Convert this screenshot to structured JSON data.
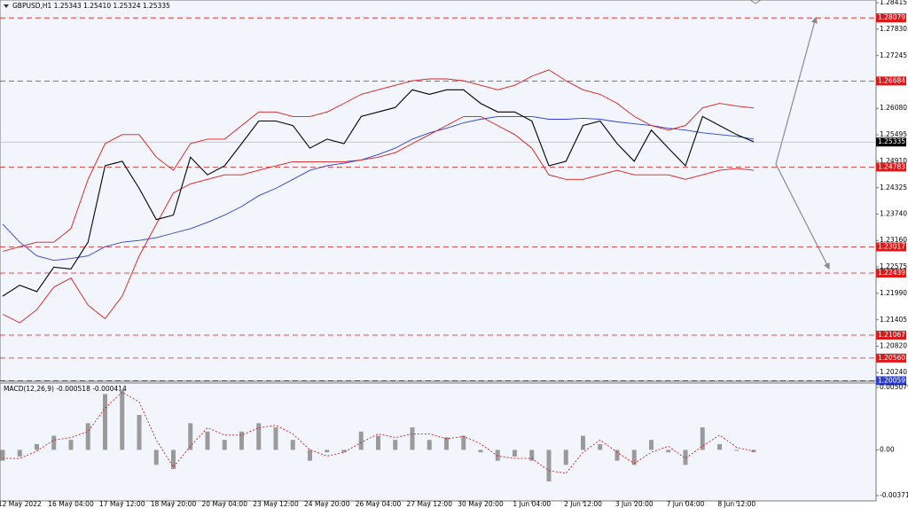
{
  "chart_data": [
    {
      "type": "line",
      "title": "GBPUSD,H1  1.25343 1.25410 1.25324 1.25335",
      "x": [
        0,
        1,
        2,
        3,
        4,
        5,
        6,
        7,
        8,
        9,
        10,
        11,
        12,
        13,
        14,
        15,
        16,
        17,
        18,
        19,
        20,
        21,
        22,
        23,
        24,
        25,
        26,
        27,
        28,
        29,
        30,
        31,
        32,
        33,
        34,
        35,
        36,
        37,
        38,
        39,
        40,
        41,
        42,
        43,
        44
      ],
      "xlim": [
        0,
        44
      ],
      "xticks": [
        {
          "value": 1,
          "label": "12 May 2022"
        },
        {
          "value": 4,
          "label": "16 May 04:00"
        },
        {
          "value": 7,
          "label": "17 May 12:00"
        },
        {
          "value": 10,
          "label": "18 May 20:00"
        },
        {
          "value": 13,
          "label": "20 May 04:00"
        },
        {
          "value": 16,
          "label": "23 May 12:00"
        },
        {
          "value": 19,
          "label": "24 May 20:00"
        },
        {
          "value": 22,
          "label": "26 May 04:00"
        },
        {
          "value": 25,
          "label": "27 May 12:00"
        },
        {
          "value": 28,
          "label": "30 May 20:00"
        },
        {
          "value": 31,
          "label": "1 Jun 04:00"
        },
        {
          "value": 34,
          "label": "2 Jun 12:00"
        },
        {
          "value": 37,
          "label": "3 Jun 20:00"
        },
        {
          "value": 40,
          "label": "7 Jun 04:00"
        },
        {
          "value": 43,
          "label": "8 Jun 12:00"
        }
      ],
      "ylim": [
        1.20048,
        1.28475
      ],
      "yticks": [
        1.28415,
        {
          "value": 1.2783,
          "label": "1.27830"
        },
        1.27245,
        {
          "value": 1.2608,
          "label": "1.26080"
        },
        1.25495,
        {
          "value": 1.2491,
          "label": "1.24910"
        },
        1.24325,
        {
          "value": 1.2374,
          "label": "1.23740"
        },
        {
          "value": 1.2316,
          "label": "1.23160"
        },
        1.22575,
        {
          "value": 1.2199,
          "label": "1.21990"
        },
        1.21405,
        {
          "value": 1.2082,
          "label": "1.20820"
        },
        {
          "value": 1.2024,
          "label": "1.20240"
        }
      ],
      "series": [
        {
          "color": "#2c3fd0",
          "values": [
            1.2352,
            1.2312,
            1.2282,
            1.2272,
            1.2276,
            1.2282,
            1.2302,
            1.2312,
            1.2316,
            1.2322,
            1.2332,
            1.2342,
            1.2356,
            1.2372,
            1.2391,
            1.2415,
            1.2431,
            1.2451,
            1.2471,
            1.2481,
            1.2487,
            1.2494,
            1.2506,
            1.252,
            1.254,
            1.2554,
            1.2564,
            1.2576,
            1.2584,
            1.259,
            1.259,
            1.259,
            1.2584,
            1.2584,
            1.2586,
            1.2584,
            1.2578,
            1.2574,
            1.257,
            1.2564,
            1.256,
            1.2554,
            1.255,
            1.2546,
            1.254
          ]
        },
        {
          "color": "#e01818",
          "values": [
            1.2292,
            1.2302,
            1.2312,
            1.2312,
            1.2342,
            1.2451,
            1.253,
            1.255,
            1.255,
            1.25,
            1.2471,
            1.253,
            1.254,
            1.254,
            1.257,
            1.26,
            1.26,
            1.259,
            1.259,
            1.26,
            1.2619,
            1.2639,
            1.2649,
            1.2659,
            1.2669,
            1.2673,
            1.2673,
            1.2669,
            1.2659,
            1.2649,
            1.2659,
            1.2679,
            1.2693,
            1.2669,
            1.2649,
            1.2639,
            1.2619,
            1.259,
            1.257,
            1.256,
            1.257,
            1.2609,
            1.2619,
            1.2613,
            1.2609
          ]
        },
        {
          "color": "#e01818",
          "values": [
            1.2153,
            1.2134,
            1.2163,
            1.2213,
            1.2233,
            1.2173,
            1.2143,
            1.2193,
            1.2282,
            1.2352,
            1.2421,
            1.2441,
            1.2451,
            1.2461,
            1.2461,
            1.2471,
            1.2481,
            1.249,
            1.249,
            1.249,
            1.249,
            1.2494,
            1.25,
            1.251,
            1.253,
            1.255,
            1.257,
            1.259,
            1.259,
            1.257,
            1.255,
            1.252,
            1.2461,
            1.2451,
            1.2451,
            1.2461,
            1.2471,
            1.2461,
            1.2461,
            1.2461,
            1.2451,
            1.2461,
            1.2471,
            1.2475,
            1.2471
          ]
        },
        {
          "color": "#000000",
          "values": [
            1.2193,
            1.2217,
            1.2203,
            1.2257,
            1.2253,
            1.2312,
            1.2481,
            1.2491,
            1.2431,
            1.2362,
            1.2372,
            1.25,
            1.2461,
            1.2481,
            1.253,
            1.258,
            1.258,
            1.257,
            1.252,
            1.254,
            1.253,
            1.259,
            1.26,
            1.261,
            1.2649,
            1.2639,
            1.2649,
            1.2649,
            1.2619,
            1.26,
            1.26,
            1.258,
            1.2481,
            1.2491,
            1.257,
            1.258,
            1.253,
            1.2491,
            1.256,
            1.252,
            1.2481,
            1.259,
            1.257,
            1.255,
            1.2534
          ]
        }
      ],
      "levels": [
        1.28079,
        1.26684,
        1.24783,
        1.23017,
        1.22439,
        1.21067,
        {
          "value": 1.2056,
          "label": "1.20560"
        }
      ],
      "level_color": "#e01818",
      "support": 1.20059,
      "support_color": "#2c3fd0",
      "last_price": 1.25335
    },
    {
      "type": "bar",
      "title": "MACD(12,26,9) -0.000518 -0.000414",
      "ylim": [
        -0.003718,
        0.005079
      ],
      "yticks": [
        0.005079,
        {
          "value": 0,
          "label": "0.00"
        },
        -0.003718
      ],
      "color": "#9a9a9a",
      "values": [
        -0.00088,
        -0.00054,
        0.00047,
        0.00115,
        0.00081,
        0.00217,
        0.00454,
        0.00488,
        0.00284,
        -0.00122,
        -0.00156,
        0.00217,
        0.00149,
        0.00081,
        0.00149,
        0.00217,
        0.00183,
        0.00081,
        -0.00088,
        -0.0002,
        -0.0002,
        0.00149,
        0.00115,
        0.00081,
        0.00183,
        0.00081,
        0.00102,
        0.00115,
        -0.0002,
        -0.00088,
        -0.00054,
        -0.00088,
        -0.00257,
        -0.00122,
        0.00115,
        0.00047,
        -0.00088,
        -0.00122,
        0.00081,
        -0.0002,
        -0.00122,
        0.00183,
        0.00047,
        -7e-05,
        -0.0002
      ],
      "signal": {
        "color": "#e01818",
        "values": [
          -0.0007,
          -0.0007,
          -0.0001,
          0.0008,
          0.001,
          0.0015,
          0.0034,
          0.0047,
          0.0039,
          0.0008,
          -0.0014,
          0.0003,
          0.0018,
          0.0012,
          0.0012,
          0.0018,
          0.002,
          0.0013,
          0,
          -0.0005,
          -0.0002,
          0.0006,
          0.0013,
          0.001,
          0.0013,
          0.0013,
          0.0009,
          0.0011,
          0.0005,
          -0.0005,
          -0.0007,
          -0.0007,
          -0.0017,
          -0.0019,
          -0.0002,
          0.0008,
          -0.0002,
          -0.0011,
          -0.0002,
          0.0003,
          -0.0007,
          0.0003,
          0.0012,
          0.0002,
          -0.0001
        ]
      }
    }
  ]
}
